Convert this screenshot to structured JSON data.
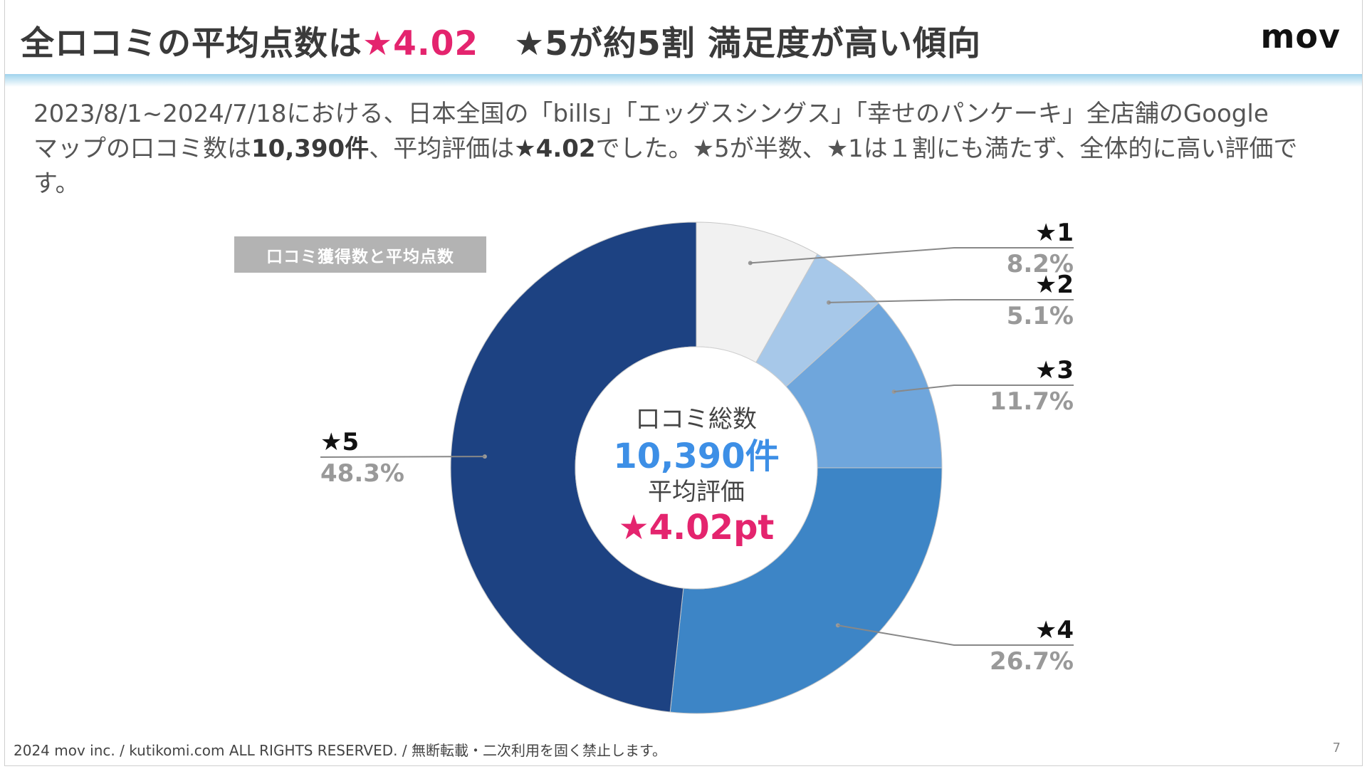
{
  "header": {
    "title_main": "全ロコミの平均点数は",
    "title_score": "★4.02",
    "title_rest": "★5が約5割 満足度が高い傾向",
    "brand": "mov"
  },
  "description": {
    "line1": "2023/8/1~2024/7/18における、日本全国の「bills」「エッグスシングス」「幸せのパンケーキ」全店舗のGoogle",
    "line2_a": "マップの口コミ数は",
    "line2_count": "10,390件",
    "line2_b": "、平均評価は",
    "line2_score": "★4.02",
    "line2_c": "でした。★5が半数、★1は１割にも満たず、全体的に高い評価です。"
  },
  "badge": "口コミ獲得数と平均点数",
  "center": {
    "label_total": "口コミ総数",
    "total": "10,390件",
    "label_avg": "平均評価",
    "avg": "★4.02pt"
  },
  "chart_data": {
    "type": "pie",
    "title": "口コミ獲得数と平均点数",
    "donut": true,
    "categories": [
      "★1",
      "★2",
      "★3",
      "★4",
      "★5"
    ],
    "values": [
      8.2,
      5.1,
      11.7,
      26.7,
      48.3
    ],
    "value_labels": [
      "8.2%",
      "5.1%",
      "11.7%",
      "26.7%",
      "48.3%"
    ],
    "colors": [
      "#f1f1f1",
      "#a7c8e9",
      "#6fa6dc",
      "#3d85c6",
      "#1d4282"
    ]
  },
  "colors": {
    "accent": "#e4246e",
    "total_blue": "#3d8fe6",
    "label_gray": "#999999"
  },
  "footer": {
    "copyright": "2024 mov inc. / kutikomi.com ALL RIGHTS RESERVED. / 無断転載・二次利用を固く禁止します。",
    "page": "7"
  }
}
